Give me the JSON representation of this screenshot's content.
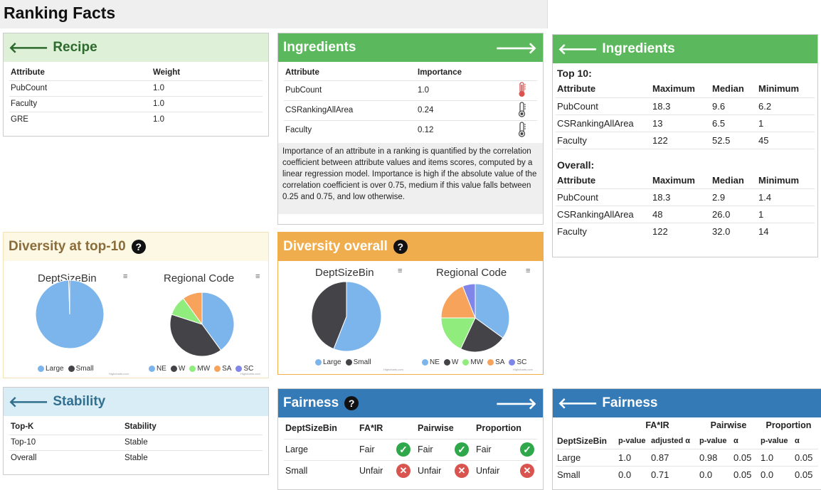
{
  "title": "Ranking Facts",
  "recipe": {
    "header": "Recipe",
    "cols": [
      "Attribute",
      "Weight"
    ],
    "rows": [
      [
        "PubCount",
        "1.0"
      ],
      [
        "Faculty",
        "1.0"
      ],
      [
        "GRE",
        "1.0"
      ]
    ]
  },
  "ingredients": {
    "header": "Ingredients",
    "cols": [
      "Attribute",
      "Importance"
    ],
    "rows": [
      [
        "PubCount",
        "1.0",
        "high"
      ],
      [
        "CSRankingAllArea",
        "0.24",
        "low"
      ],
      [
        "Faculty",
        "0.12",
        "low"
      ]
    ],
    "note": "Importance of an attribute in a ranking is quantified by the correlation coefficient between attribute values and items scores, computed by a linear regression model. Importance is high if the absolute value of the correlation coefficient is over 0.75, medium if this value falls between 0.25 and 0.75, and low otherwise."
  },
  "ingredients_detail": {
    "header": "Ingredients",
    "top_label": "Top 10:",
    "overall_label": "Overall:",
    "cols": [
      "Attribute",
      "Maximum",
      "Median",
      "Minimum"
    ],
    "top": [
      [
        "PubCount",
        "18.3",
        "9.6",
        "6.2"
      ],
      [
        "CSRankingAllArea",
        "13",
        "6.5",
        "1"
      ],
      [
        "Faculty",
        "122",
        "52.5",
        "45"
      ]
    ],
    "overall": [
      [
        "PubCount",
        "18.3",
        "2.9",
        "1.4"
      ],
      [
        "CSRankingAllArea",
        "48",
        "26.0",
        "1"
      ],
      [
        "Faculty",
        "122",
        "32.0",
        "14"
      ]
    ]
  },
  "diversity_top": {
    "header": "Diversity at top-10",
    "help": "?"
  },
  "diversity_overall": {
    "header": "Diversity overall",
    "help": "?"
  },
  "chart_data": [
    {
      "type": "pie",
      "title": "DeptSizeBin",
      "panel": "top-10",
      "labels": [
        "Large",
        "Small"
      ],
      "values": [
        100,
        0.5
      ],
      "colors": [
        "#7cb5ec",
        "#434348"
      ],
      "credit": "Highcharts.com"
    },
    {
      "type": "pie",
      "title": "Regional Code",
      "panel": "top-10",
      "labels": [
        "NE",
        "W",
        "MW",
        "SA",
        "SC"
      ],
      "values": [
        40,
        40,
        10,
        10,
        0
      ],
      "colors": [
        "#7cb5ec",
        "#434348",
        "#90ed7d",
        "#f7a35c",
        "#8085e9"
      ],
      "credit": "Highcharts.com"
    },
    {
      "type": "pie",
      "title": "DeptSizeBin",
      "panel": "overall",
      "labels": [
        "Large",
        "Small"
      ],
      "values": [
        56,
        44
      ],
      "colors": [
        "#7cb5ec",
        "#434348"
      ],
      "credit": "Highcharts.com"
    },
    {
      "type": "pie",
      "title": "Regional Code",
      "panel": "overall",
      "labels": [
        "NE",
        "W",
        "MW",
        "SA",
        "SC"
      ],
      "values": [
        35,
        22,
        18,
        19,
        6
      ],
      "colors": [
        "#7cb5ec",
        "#434348",
        "#90ed7d",
        "#f7a35c",
        "#8085e9"
      ],
      "credit": "Highcharts.com"
    }
  ],
  "chart_menu": "≡",
  "stability": {
    "header": "Stability",
    "cols": [
      "Top-K",
      "Stability"
    ],
    "rows": [
      [
        "Top-10",
        "Stable"
      ],
      [
        "Overall",
        "Stable"
      ]
    ]
  },
  "fairness": {
    "header": "Fairness",
    "help": "?",
    "cols": [
      "DeptSizeBin",
      "FA*IR",
      "Pairwise",
      "Proportion"
    ],
    "rows": [
      {
        "name": "Large",
        "fair": "Fair",
        "pair": "Fair",
        "prop": "Fair",
        "ok": true
      },
      {
        "name": "Small",
        "fair": "Unfair",
        "pair": "Unfair",
        "prop": "Unfair",
        "ok": false
      }
    ]
  },
  "fairness_detail": {
    "header": "Fairness",
    "groups": [
      "FA*IR",
      "Pairwise",
      "Proportion"
    ],
    "cols": [
      "DeptSizeBin",
      "p-value",
      "adjusted α",
      "p-value",
      "α",
      "p-value",
      "α"
    ],
    "rows": [
      [
        "Large",
        "1.0",
        "0.87",
        "0.98",
        "0.05",
        "1.0",
        "0.05"
      ],
      [
        "Small",
        "0.0",
        "0.71",
        "0.0",
        "0.05",
        "0.0",
        "0.05"
      ]
    ]
  }
}
